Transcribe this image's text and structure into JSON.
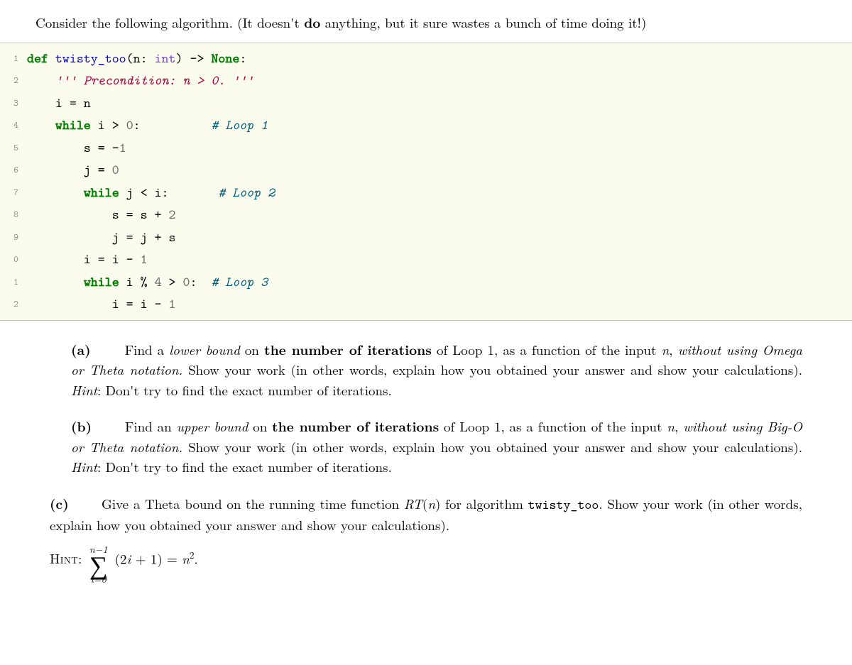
{
  "intro": {
    "pre": "Consider the following algorithm. (It doesn't ",
    "bold": "do",
    "post": " anything, but it sure wastes a bunch of time doing it!)"
  },
  "code": {
    "background_color": "#fcfcee",
    "border_color": "#c0c0c0",
    "gutter_color": "#888888",
    "token_colors": {
      "keyword": "#007f00",
      "function": "#0000cc",
      "type": "#6f42c1",
      "string": "#b00040",
      "number": "#666666",
      "comment": "#006080"
    },
    "font_family": "monospace",
    "font_size_pt": 14,
    "line_height": 1.65,
    "lines": [
      {
        "n": "1",
        "indent": 0,
        "tokens": [
          {
            "t": "kw",
            "v": "def "
          },
          {
            "t": "fn",
            "v": "twisty_too"
          },
          {
            "t": "",
            "v": "(n: "
          },
          {
            "t": "type",
            "v": "int"
          },
          {
            "t": "",
            "v": ") -> "
          },
          {
            "t": "kw",
            "v": "None"
          },
          {
            "t": "",
            "v": ":"
          }
        ]
      },
      {
        "n": "2",
        "indent": 1,
        "tokens": [
          {
            "t": "str",
            "v": "''' Precondition: n > 0. '''"
          }
        ]
      },
      {
        "n": "3",
        "indent": 1,
        "tokens": [
          {
            "t": "",
            "v": "i = n"
          }
        ]
      },
      {
        "n": "4",
        "indent": 1,
        "tokens": [
          {
            "t": "kw",
            "v": "while"
          },
          {
            "t": "",
            "v": " i > "
          },
          {
            "t": "num",
            "v": "0"
          },
          {
            "t": "",
            "v": ":          "
          },
          {
            "t": "cmt",
            "v": "# Loop 1"
          }
        ]
      },
      {
        "n": "5",
        "indent": 2,
        "tokens": [
          {
            "t": "",
            "v": "s = -"
          },
          {
            "t": "num",
            "v": "1"
          }
        ]
      },
      {
        "n": "6",
        "indent": 2,
        "tokens": [
          {
            "t": "",
            "v": "j = "
          },
          {
            "t": "num",
            "v": "0"
          }
        ]
      },
      {
        "n": "7",
        "indent": 2,
        "tokens": [
          {
            "t": "kw",
            "v": "while"
          },
          {
            "t": "",
            "v": " j < i:       "
          },
          {
            "t": "cmt",
            "v": "# Loop 2"
          }
        ]
      },
      {
        "n": "8",
        "indent": 3,
        "tokens": [
          {
            "t": "",
            "v": "s = s + "
          },
          {
            "t": "num",
            "v": "2"
          }
        ]
      },
      {
        "n": "9",
        "indent": 3,
        "tokens": [
          {
            "t": "",
            "v": "j = j + s"
          }
        ]
      },
      {
        "n": "0",
        "indent": 2,
        "tokens": [
          {
            "t": "",
            "v": "i = i - "
          },
          {
            "t": "num",
            "v": "1"
          }
        ]
      },
      {
        "n": "1",
        "indent": 2,
        "tokens": [
          {
            "t": "kw",
            "v": "while"
          },
          {
            "t": "",
            "v": " i % "
          },
          {
            "t": "num",
            "v": "4"
          },
          {
            "t": "",
            "v": " > "
          },
          {
            "t": "num",
            "v": "0"
          },
          {
            "t": "",
            "v": ":  "
          },
          {
            "t": "cmt",
            "v": "# Loop 3"
          }
        ]
      },
      {
        "n": "2",
        "indent": 3,
        "tokens": [
          {
            "t": "",
            "v": "i = i - "
          },
          {
            "t": "num",
            "v": "1"
          }
        ]
      }
    ]
  },
  "parts": {
    "a": {
      "label": "(a)",
      "lead_ital": "lower bound",
      "lead_bold": "the number of iterations",
      "rest_ital2": "without using Omega or Theta notation.",
      "hint_ital": "Hint",
      "t1": "Find a ",
      "t2": " on ",
      "t3": " of Loop 1, as a function of the input ",
      "tn": "n",
      "t4": ", ",
      "t5": " Show your work (in other words, explain how you obtained your answer and show your calculations). ",
      "t6": ": Don't try to find the exact number of iterations."
    },
    "b": {
      "label": "(b)",
      "lead_ital": "upper bound",
      "lead_bold": "the number of iterations",
      "rest_ital2": "without using Big-O or Theta notation.",
      "hint_ital": "Hint",
      "t1": "Find an ",
      "t2": " on ",
      "t3": " of Loop 1, as a function of the input ",
      "tn": "n",
      "t4": ", ",
      "t5": " Show your work (in other words, explain how you obtained your answer and show your calculations). ",
      "t6": ": Don't try to find the exact number of iterations."
    },
    "c": {
      "label": "(c)",
      "t1": "Give a Theta bound on the running time function ",
      "rt": "RT",
      "paren_n": "(n)",
      "t2": " for algorithm ",
      "fn": "twisty_too",
      "t3": ". Show your work (in other words, explain how you obtained your answer and show your calculations).",
      "hint_label": "Hint:",
      "sum_upper": "n−1",
      "sum_lower": "i=0",
      "sum_body_pre": "(2",
      "sum_body_i": "i",
      "sum_body_mid": " + 1) = ",
      "sum_body_n": "n",
      "sum_body_exp": "2",
      "sum_body_end": "."
    }
  }
}
